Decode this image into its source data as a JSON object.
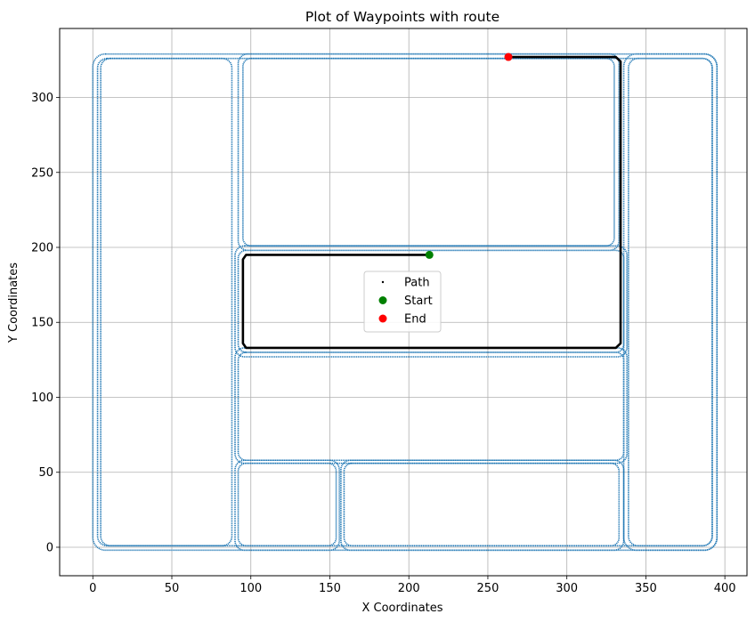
{
  "chart_data": {
    "type": "scatter",
    "title": "Plot of Waypoints with route",
    "xlabel": "X Coordinates",
    "ylabel": "Y Coordinates",
    "xlim": [
      -21,
      414
    ],
    "ylim": [
      -19,
      346
    ],
    "xticks": [
      0,
      50,
      100,
      150,
      200,
      250,
      300,
      350,
      400
    ],
    "yticks": [
      0,
      50,
      100,
      150,
      200,
      250,
      300
    ],
    "grid": true,
    "legend_position": "center",
    "legend": [
      {
        "label": "Path",
        "marker": "small-dot",
        "color": "#000000"
      },
      {
        "label": "Start",
        "marker": "circle",
        "color": "#008000"
      },
      {
        "label": "End",
        "marker": "circle",
        "color": "#ff0000"
      }
    ],
    "waypoint_color": "#1f77b4",
    "route_color": "#000000",
    "waypoint_loops": [
      {
        "x1": 0,
        "y1": -2,
        "x2": 395,
        "y2": 329,
        "r": 8
      },
      {
        "x1": 3,
        "y1": 1,
        "x2": 392,
        "y2": 326,
        "r": 6
      },
      {
        "x1": 5,
        "y1": 1,
        "x2": 88,
        "y2": 326,
        "r": 6
      },
      {
        "x1": 92,
        "y1": 198,
        "x2": 333,
        "y2": 329,
        "r": 6
      },
      {
        "x1": 95,
        "y1": 201,
        "x2": 330,
        "y2": 326,
        "r": 5
      },
      {
        "x1": 339,
        "y1": 1,
        "x2": 392,
        "y2": 326,
        "r": 6
      },
      {
        "x1": 336,
        "y1": -2,
        "x2": 395,
        "y2": 329,
        "r": 8
      },
      {
        "x1": 92,
        "y1": 130,
        "x2": 336,
        "y2": 198,
        "r": 5
      },
      {
        "x1": 90,
        "y1": 127,
        "x2": 338,
        "y2": 201,
        "r": 6
      },
      {
        "x1": 92,
        "y1": 58,
        "x2": 336,
        "y2": 130,
        "r": 5
      },
      {
        "x1": 90,
        "y1": 56,
        "x2": 338,
        "y2": 133,
        "r": 6
      },
      {
        "x1": 92,
        "y1": 1,
        "x2": 154,
        "y2": 56,
        "r": 5
      },
      {
        "x1": 90,
        "y1": -2,
        "x2": 156,
        "y2": 58,
        "r": 6
      },
      {
        "x1": 159,
        "y1": 1,
        "x2": 333,
        "y2": 56,
        "r": 5
      },
      {
        "x1": 157,
        "y1": -2,
        "x2": 336,
        "y2": 58,
        "r": 6
      }
    ],
    "route_points": [
      [
        213,
        195
      ],
      [
        97,
        195
      ],
      [
        95,
        192
      ],
      [
        95,
        136
      ],
      [
        97,
        133
      ],
      [
        331,
        133
      ],
      [
        334,
        136
      ],
      [
        334,
        324
      ],
      [
        331,
        327
      ],
      [
        263,
        327
      ]
    ],
    "start": {
      "x": 213,
      "y": 195
    },
    "end": {
      "x": 263,
      "y": 327
    }
  }
}
